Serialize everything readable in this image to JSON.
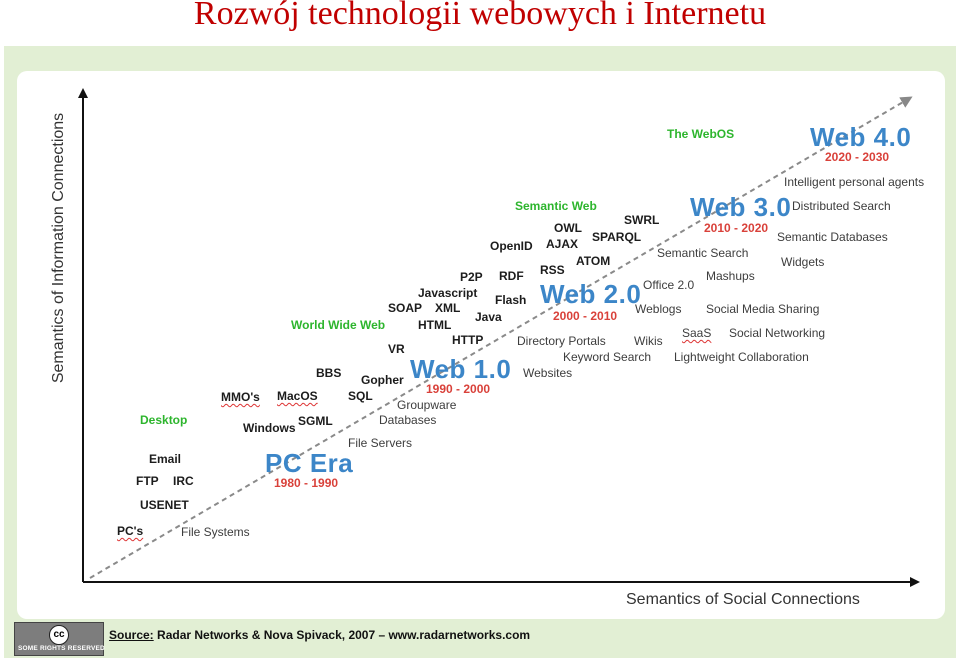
{
  "title": "Rozwój technologii webowych i Internetu",
  "axes": {
    "y_label": "Semantics of Information Connections",
    "x_label": "Semantics of Social Connections"
  },
  "eras": [
    {
      "name": "PC Era",
      "years": "1980 - 1990"
    },
    {
      "name": "Web 1.0",
      "years": "1990 - 2000"
    },
    {
      "name": "Web 2.0",
      "years": "2000 - 2010"
    },
    {
      "name": "Web 3.0",
      "years": "2010 - 2020"
    },
    {
      "name": "Web 4.0",
      "years": "2020 - 2030"
    }
  ],
  "categories": {
    "desktop": "Desktop",
    "www": "World Wide Web",
    "semantic_web": "Semantic Web",
    "webos": "The WebOS"
  },
  "technologies": {
    "pcs": "PC's",
    "usenet": "USENET",
    "ftp": "FTP",
    "irc": "IRC",
    "email": "Email",
    "windows": "Windows",
    "sgml": "SGML",
    "mmos": "MMO's",
    "macos": "MacOS",
    "sql": "SQL",
    "bbs": "BBS",
    "gopher": "Gopher",
    "vr": "VR",
    "html": "HTML",
    "http": "HTTP",
    "soap": "SOAP",
    "xml": "XML",
    "javascript": "Javascript",
    "java": "Java",
    "p2p": "P2P",
    "flash": "Flash",
    "rdf": "RDF",
    "rss": "RSS",
    "openid": "OpenID",
    "ajax": "AJAX",
    "owl": "OWL",
    "sparql": "SPARQL",
    "swrl": "SWRL",
    "atom": "ATOM"
  },
  "concepts": {
    "file_systems": "File Systems",
    "file_servers": "File Servers",
    "groupware": "Groupware",
    "databases": "Databases",
    "websites": "Websites",
    "directory_portals": "Directory Portals",
    "keyword_search": "Keyword Search",
    "wikis": "Wikis",
    "weblogs": "Weblogs",
    "office20": "Office 2.0",
    "lightweight_collab": "Lightweight Collaboration",
    "saas": "SaaS",
    "social_networking": "Social Networking",
    "social_media_sharing": "Social Media Sharing",
    "mashups": "Mashups",
    "semantic_search": "Semantic Search",
    "widgets": "Widgets",
    "semantic_databases": "Semantic Databases",
    "distributed_search": "Distributed Search",
    "intelligent_agents": "Intelligent personal agents"
  },
  "footer": {
    "cc_symbol": "cc",
    "cc_text": "SOME RIGHTS RESERVED",
    "source_label": "Source:",
    "source_text": "Radar Networks & Nova Spivack, 2007 – www.radarnetworks.com"
  }
}
